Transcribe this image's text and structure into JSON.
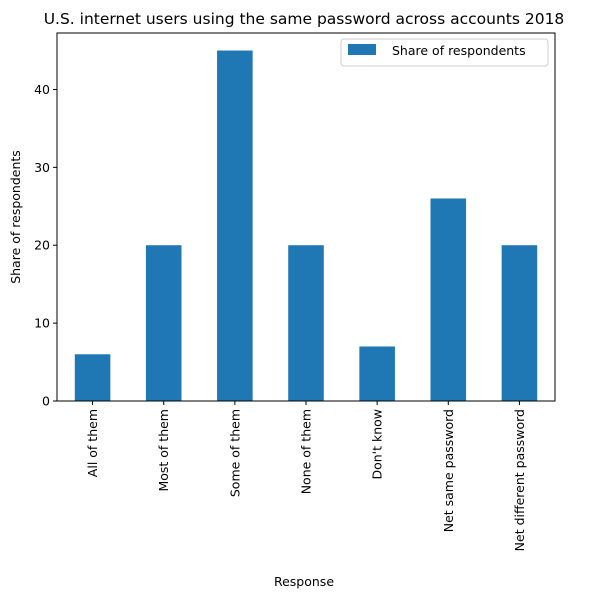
{
  "chart_data": {
    "type": "bar",
    "title": "U.S. internet users using the same password across accounts 2018",
    "xlabel": "Response",
    "ylabel": "Share of respondents",
    "categories": [
      "All of them",
      "Most of them",
      "Some of them",
      "None of them",
      "Don't know",
      "Net same password",
      "Net different password"
    ],
    "series": [
      {
        "name": "Share of respondents",
        "values": [
          6,
          20,
          45,
          20,
          7,
          26,
          20
        ]
      }
    ],
    "ylim": [
      0,
      47.25
    ],
    "yticks": [
      0,
      10,
      20,
      30,
      40
    ],
    "grid": false,
    "legend_position": "top-right",
    "bar_color": "#1f77b4"
  }
}
